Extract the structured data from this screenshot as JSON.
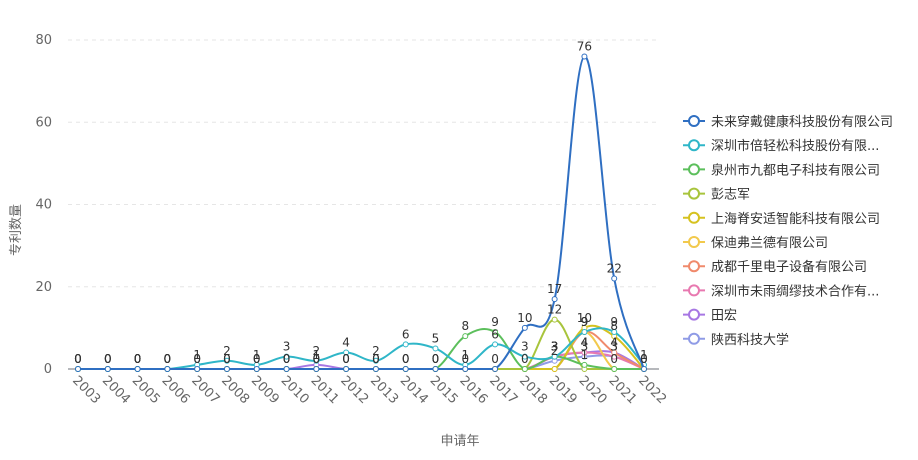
{
  "chart_data": {
    "type": "line",
    "xlabel": "申请年",
    "ylabel": "专利数量",
    "categories": [
      "2003",
      "2004",
      "2005",
      "2006",
      "2007",
      "2008",
      "2009",
      "2010",
      "2011",
      "2012",
      "2013",
      "2014",
      "2015",
      "2016",
      "2017",
      "2018",
      "2019",
      "2020",
      "2021",
      "2022"
    ],
    "ylim": [
      0,
      80
    ],
    "yticks": [
      0,
      20,
      40,
      60,
      80
    ],
    "grid": true,
    "smooth": true,
    "legend_position": "right",
    "series": [
      {
        "name": "未来穿戴健康科技股份有限公司",
        "color": "#2f6fc2",
        "label": "full",
        "values": [
          0,
          0,
          0,
          0,
          0,
          0,
          0,
          0,
          0,
          0,
          0,
          0,
          0,
          0,
          0,
          10,
          17,
          76,
          22,
          0
        ]
      },
      {
        "name": "深圳市倍轻松科技股份有限...",
        "color": "#2fb6c8",
        "label": "full",
        "values": [
          0,
          0,
          0,
          0,
          1,
          2,
          1,
          3,
          2,
          4,
          2,
          6,
          5,
          1,
          6,
          3,
          3,
          9,
          9,
          1
        ]
      },
      {
        "name": "泉州市九都电子科技有限公司",
        "color": "#5cbf5c",
        "label": "full",
        "values": [
          0,
          0,
          0,
          0,
          0,
          0,
          0,
          0,
          0,
          0,
          0,
          0,
          0,
          8,
          9,
          0,
          3,
          1,
          0,
          0
        ]
      },
      {
        "name": "彭志军",
        "color": "#a8c43c",
        "label": "nonzero",
        "values": [
          0,
          0,
          0,
          0,
          0,
          0,
          0,
          0,
          0,
          0,
          0,
          0,
          0,
          0,
          0,
          0,
          12,
          0,
          0,
          0
        ]
      },
      {
        "name": "上海脊安适智能科技有限公司",
        "color": "#d6c21f",
        "label": "nonzero",
        "values": [
          0,
          0,
          0,
          0,
          0,
          0,
          0,
          0,
          0,
          0,
          0,
          0,
          0,
          0,
          0,
          0,
          0,
          10,
          8,
          0
        ]
      },
      {
        "name": "保迪弗兰德有限公司",
        "color": "#f2c94c",
        "label": "nonzero",
        "values": [
          0,
          0,
          0,
          0,
          0,
          0,
          0,
          0,
          0,
          0,
          0,
          0,
          0,
          0,
          0,
          0,
          0,
          9,
          0,
          0
        ]
      },
      {
        "name": "成都千里电子设备有限公司",
        "color": "#f08a6c",
        "label": "nonzero",
        "values": [
          0,
          0,
          0,
          0,
          0,
          0,
          0,
          0,
          0,
          0,
          0,
          0,
          0,
          0,
          0,
          0,
          0,
          9,
          4,
          0
        ]
      },
      {
        "name": "深圳市未雨绸缪技术合作有...",
        "color": "#e879b0",
        "label": "nonzero",
        "values": [
          0,
          0,
          0,
          0,
          0,
          0,
          0,
          0,
          0,
          0,
          0,
          0,
          0,
          0,
          0,
          0,
          3,
          4,
          3,
          0
        ]
      },
      {
        "name": "田宏",
        "color": "#a777e3",
        "label": "nonzero",
        "values": [
          0,
          0,
          0,
          0,
          0,
          0,
          0,
          0,
          1,
          0,
          0,
          0,
          0,
          0,
          0,
          0,
          3,
          4,
          4,
          0
        ]
      },
      {
        "name": "陕西科技大学",
        "color": "#8f9be6",
        "label": "nonzero",
        "values": [
          0,
          0,
          0,
          0,
          0,
          0,
          0,
          0,
          0,
          0,
          0,
          0,
          0,
          0,
          0,
          0,
          2,
          3,
          3,
          0
        ]
      }
    ]
  }
}
